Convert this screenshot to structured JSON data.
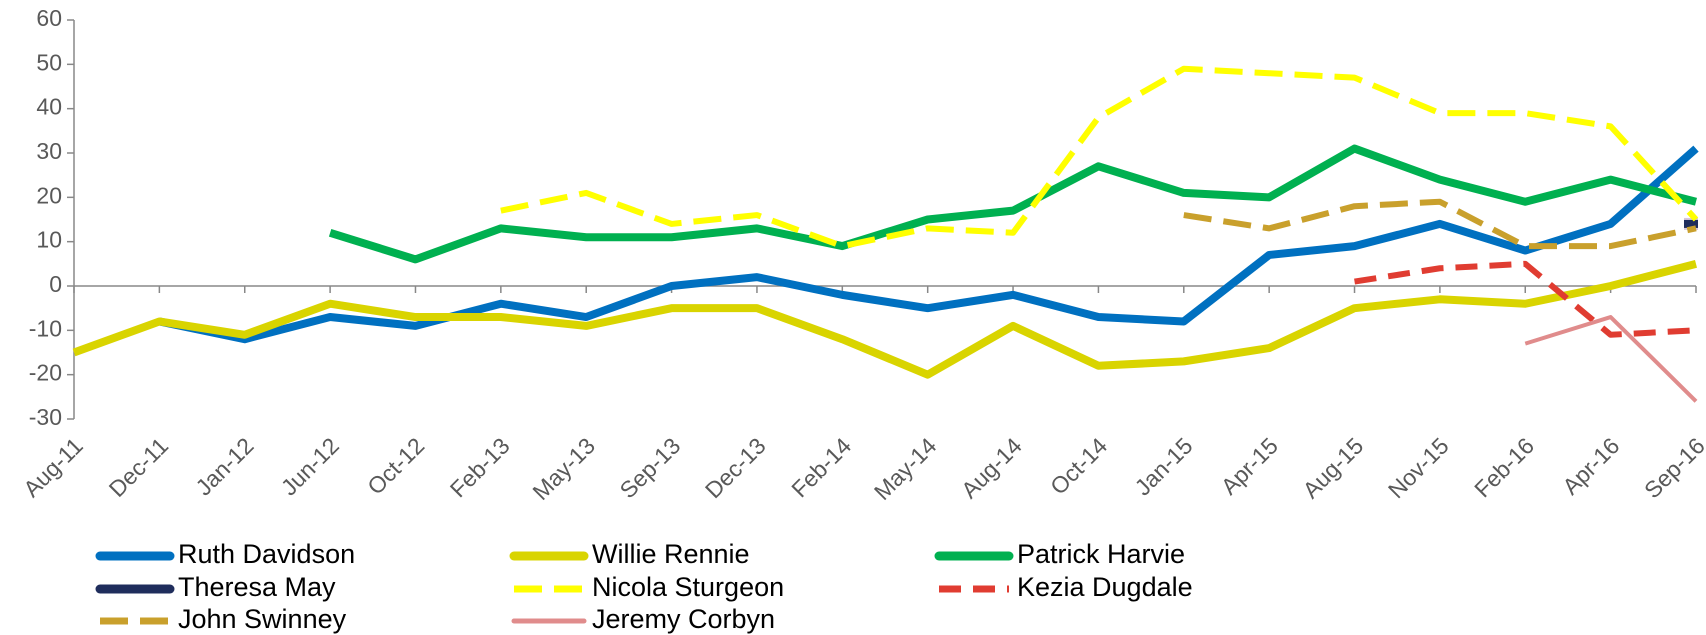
{
  "chart_data": {
    "type": "line",
    "categories": [
      "Aug-11",
      "Dec-11",
      "Jan-12",
      "Jun-12",
      "Oct-12",
      "Feb-13",
      "May-13",
      "Sep-13",
      "Dec-13",
      "Feb-14",
      "May-14",
      "Aug-14",
      "Oct-14",
      "Jan-15",
      "Apr-15",
      "Aug-15",
      "Nov-15",
      "Feb-16",
      "Apr-16",
      "Sep-16"
    ],
    "series": [
      {
        "name": "Ruth Davidson",
        "color": "#0070c0",
        "width": 8,
        "dash": "none",
        "values": [
          null,
          -8,
          -12,
          -7,
          -9,
          -4,
          -7,
          0,
          2,
          -2,
          -5,
          -2,
          -7,
          -8,
          7,
          9,
          14,
          8,
          14,
          31
        ]
      },
      {
        "name": "Willie Rennie",
        "color": "#d9d400",
        "width": 8,
        "dash": "none",
        "values": [
          -15,
          -8,
          -11,
          -4,
          -7,
          -7,
          -9,
          -5,
          -5,
          -12,
          -20,
          -9,
          -18,
          -17,
          -14,
          -5,
          -3,
          -4,
          0,
          5
        ]
      },
      {
        "name": "Patrick Harvie",
        "color": "#00b050",
        "width": 8,
        "dash": "none",
        "values": [
          null,
          null,
          null,
          12,
          6,
          13,
          11,
          11,
          13,
          9,
          15,
          17,
          27,
          21,
          20,
          31,
          24,
          19,
          24,
          19
        ]
      },
      {
        "name": "Theresa May",
        "color": "#1f2d5c",
        "width": 8,
        "dash": "none",
        "values": [
          null,
          null,
          null,
          null,
          null,
          null,
          null,
          null,
          null,
          null,
          null,
          null,
          null,
          null,
          null,
          null,
          null,
          null,
          null,
          14
        ]
      },
      {
        "name": "Nicola Sturgeon",
        "color": "#ffff00",
        "width": 6,
        "dash": "28 12",
        "values": [
          null,
          null,
          null,
          null,
          null,
          17,
          21,
          14,
          16,
          9,
          13,
          12,
          38,
          49,
          48,
          47,
          39,
          39,
          36,
          15
        ]
      },
      {
        "name": "Kezia Dugdale",
        "color": "#e03c31",
        "width": 6,
        "dash": "22 12",
        "values": [
          null,
          null,
          null,
          null,
          null,
          null,
          null,
          null,
          null,
          null,
          null,
          null,
          null,
          null,
          null,
          1,
          4,
          5,
          -11,
          -10
        ]
      },
      {
        "name": "John Swinney",
        "color": "#c9a02c",
        "width": 6,
        "dash": "28 12",
        "values": [
          null,
          null,
          null,
          null,
          null,
          null,
          null,
          null,
          null,
          null,
          null,
          null,
          null,
          16,
          13,
          18,
          19,
          9,
          9,
          13
        ]
      },
      {
        "name": "Jeremy Corbyn",
        "color": "#e08c8c",
        "width": 4,
        "dash": "none",
        "values": [
          null,
          null,
          null,
          null,
          null,
          null,
          null,
          null,
          null,
          null,
          null,
          null,
          null,
          null,
          null,
          null,
          null,
          -13,
          -7,
          -26
        ]
      }
    ],
    "ylim": [
      -30,
      60
    ],
    "yticks": [
      -30,
      -20,
      -10,
      0,
      10,
      20,
      30,
      40,
      50,
      60
    ],
    "grid": false,
    "legend": "bottom"
  }
}
